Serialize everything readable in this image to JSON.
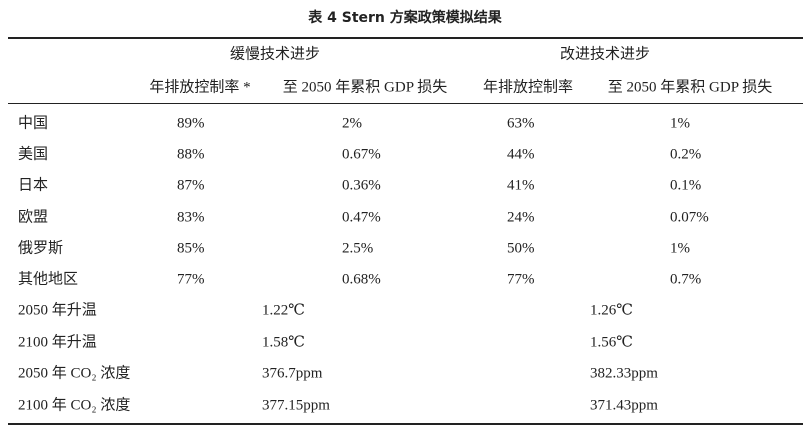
{
  "title": "表 4  Stern 方案政策模拟结果",
  "table": {
    "groups": [
      "缓慢技术进步",
      "改进技术进步"
    ],
    "columns": [
      "年排放控制率 *",
      "至 2050 年累积 GDP 损失",
      "年排放控制率",
      "至 2050 年累积 GDP 损失"
    ],
    "rows": [
      [
        "中国",
        "89%",
        "2%",
        "63%",
        "1%"
      ],
      [
        "美国",
        "88%",
        "0.67%",
        "44%",
        "0.2%"
      ],
      [
        "日本",
        "87%",
        "0.36%",
        "41%",
        "0.1%"
      ],
      [
        "欧盟",
        "83%",
        "0.47%",
        "24%",
        "0.07%"
      ],
      [
        "俄罗斯",
        "85%",
        "2.5%",
        "50%",
        "1%"
      ],
      [
        "其他地区",
        "77%",
        "0.68%",
        "77%",
        "0.7%"
      ]
    ],
    "summary_rows": [
      [
        "2050 年升温",
        "1.22℃",
        "1.26℃"
      ],
      [
        "2100 年升温",
        "1.58℃",
        "1.56℃"
      ],
      [
        "2050 年 CO₂ 浓度",
        "376.7ppm",
        "382.33ppm"
      ],
      [
        "2100 年 CO₂ 浓度",
        "377.15ppm",
        "371.43ppm"
      ]
    ]
  }
}
